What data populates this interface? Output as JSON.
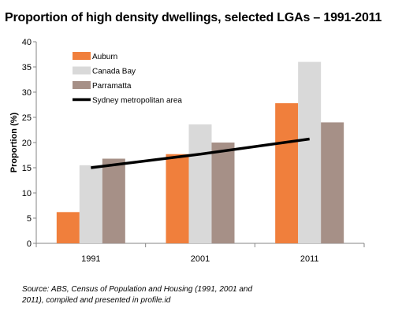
{
  "chart_data": {
    "type": "bar",
    "title": "Proportion of high density dwellings, selected LGAs – 1991-2011",
    "xlabel": "",
    "ylabel": "Proportion (%)",
    "ylim": [
      0,
      40
    ],
    "yticks": [
      0,
      5,
      10,
      15,
      20,
      25,
      30,
      35,
      40
    ],
    "categories": [
      "1991",
      "2001",
      "2011"
    ],
    "series": [
      {
        "name": "Auburn",
        "kind": "bar",
        "color": "#F07F3C",
        "values": [
          6.2,
          17.7,
          27.8
        ]
      },
      {
        "name": "Canada Bay",
        "kind": "bar",
        "color": "#D9D9D9",
        "values": [
          15.5,
          23.6,
          36.0
        ]
      },
      {
        "name": "Parramatta",
        "kind": "bar",
        "color": "#A69087",
        "values": [
          16.8,
          20.0,
          24.0
        ]
      },
      {
        "name": "Sydney metropolitan area",
        "kind": "line",
        "color": "#000000",
        "values": [
          15.0,
          17.7,
          20.7
        ]
      }
    ],
    "grid": false,
    "legend_position": "top-left"
  },
  "footer": {
    "source": "Source:  ABS, Census of Population and Housing (1991, 2001 and 2011), compiled and presented in profile.id"
  }
}
